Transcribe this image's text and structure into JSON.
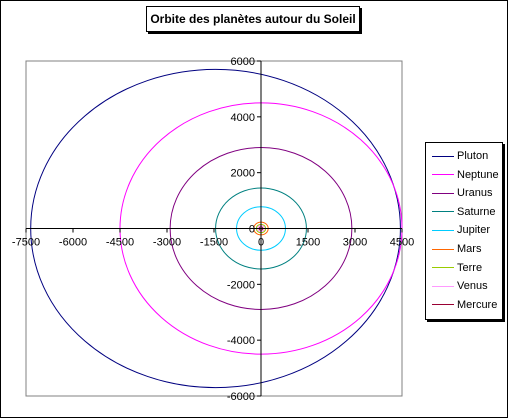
{
  "chart_data": {
    "type": "scatter",
    "title": "Orbite des planètes autour du Soleil",
    "xlim": [
      -7500,
      4500
    ],
    "ylim": [
      -6000,
      6000
    ],
    "xticks": [
      -7500,
      -6000,
      -4500,
      -3000,
      -1500,
      0,
      1500,
      3000,
      4500
    ],
    "yticks": [
      -6000,
      -4000,
      -2000,
      0,
      2000,
      4000,
      6000
    ],
    "tick_labels_x": [
      "-7500",
      "-6000",
      "-4500",
      "-3000",
      "-1500",
      "0",
      "1500",
      "3000",
      "4500"
    ],
    "tick_labels_y": [
      "-6000",
      "-4000",
      "-2000",
      "0",
      "2000",
      "4000",
      "6000"
    ],
    "legend_position": "right",
    "series": [
      {
        "name": "Pluton",
        "color": "#000080",
        "center": [
          -1450,
          0
        ],
        "rx": 5900,
        "ry": 5700
      },
      {
        "name": "Neptune",
        "color": "#ff00ff",
        "center": [
          0,
          0
        ],
        "rx": 4500,
        "ry": 4500
      },
      {
        "name": "Uranus",
        "color": "#800080",
        "center": [
          0,
          0
        ],
        "rx": 2900,
        "ry": 2900
      },
      {
        "name": "Saturne",
        "color": "#008080",
        "center": [
          0,
          0
        ],
        "rx": 1450,
        "ry": 1450
      },
      {
        "name": "Jupiter",
        "color": "#00ccff",
        "center": [
          0,
          0
        ],
        "rx": 780,
        "ry": 780
      },
      {
        "name": "Mars",
        "color": "#ff6600",
        "center": [
          0,
          0
        ],
        "rx": 230,
        "ry": 230
      },
      {
        "name": "Terre",
        "color": "#99cc00",
        "center": [
          0,
          0
        ],
        "rx": 150,
        "ry": 150
      },
      {
        "name": "Venus",
        "color": "#ff99ff",
        "center": [
          0,
          0
        ],
        "rx": 110,
        "ry": 110
      },
      {
        "name": "Mercure",
        "color": "#990033",
        "center": [
          0,
          0
        ],
        "rx": 60,
        "ry": 60
      }
    ]
  }
}
